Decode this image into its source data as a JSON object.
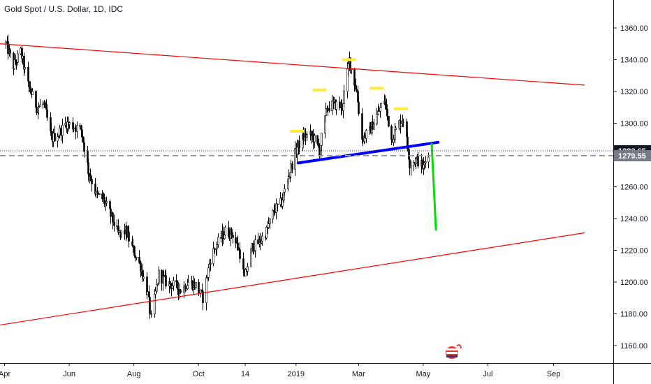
{
  "header": {
    "title": "Gold Spot / U.S. Dollar, 1D, IDC"
  },
  "chart_data": {
    "type": "candlestick",
    "symbol": "Gold Spot / U.S. Dollar",
    "interval": "1D",
    "source": "IDC",
    "y_ticks": [
      1160,
      1180,
      1200,
      1220,
      1240,
      1260,
      1280,
      1300,
      1320,
      1340,
      1360
    ],
    "y_tick_labels": [
      "1160.00",
      "1180.00",
      "1200.00",
      "1220.00",
      "1240.00",
      "1260.00",
      "1280.00",
      "1300.00",
      "1320.00",
      "1340.00",
      "1360.00"
    ],
    "ylim": [
      1151,
      1370
    ],
    "x_ticks": [
      "Apr",
      "Jun",
      "Aug",
      "Oct",
      "14",
      "2019",
      "Mar",
      "May",
      "Jul",
      "Sep"
    ],
    "price_tags": [
      {
        "label": "1282.65",
        "value": 1282.65,
        "color": "#131722"
      },
      {
        "label": "1279.55",
        "value": 1279.55,
        "color": "#787b86"
      }
    ],
    "price_path": [
      [
        "2018-04-02",
        1350
      ],
      [
        "2018-04-09",
        1336
      ],
      [
        "2018-04-16",
        1345
      ],
      [
        "2018-04-23",
        1324
      ],
      [
        "2018-05-01",
        1310
      ],
      [
        "2018-05-08",
        1312
      ],
      [
        "2018-05-15",
        1290
      ],
      [
        "2018-05-22",
        1294
      ],
      [
        "2018-05-29",
        1300
      ],
      [
        "2018-06-05",
        1298
      ],
      [
        "2018-06-12",
        1296
      ],
      [
        "2018-06-19",
        1270
      ],
      [
        "2018-06-26",
        1255
      ],
      [
        "2018-07-03",
        1252
      ],
      [
        "2018-07-10",
        1242
      ],
      [
        "2018-07-17",
        1230
      ],
      [
        "2018-07-24",
        1232
      ],
      [
        "2018-07-31",
        1220
      ],
      [
        "2018-08-07",
        1210
      ],
      [
        "2018-08-14",
        1192
      ],
      [
        "2018-08-17",
        1177
      ],
      [
        "2018-08-24",
        1205
      ],
      [
        "2018-08-31",
        1200
      ],
      [
        "2018-09-07",
        1198
      ],
      [
        "2018-09-14",
        1195
      ],
      [
        "2018-09-21",
        1200
      ],
      [
        "2018-09-28",
        1198
      ],
      [
        "2018-10-05",
        1190
      ],
      [
        "2018-10-12",
        1215
      ],
      [
        "2018-10-19",
        1225
      ],
      [
        "2018-10-26",
        1232
      ],
      [
        "2018-11-02",
        1230
      ],
      [
        "2018-11-09",
        1218
      ],
      [
        "2018-11-13",
        1202
      ],
      [
        "2018-11-20",
        1222
      ],
      [
        "2018-11-27",
        1225
      ],
      [
        "2018-12-04",
        1232
      ],
      [
        "2018-12-11",
        1245
      ],
      [
        "2018-12-18",
        1250
      ],
      [
        "2018-12-25",
        1268
      ],
      [
        "2019-01-02",
        1285
      ],
      [
        "2019-01-09",
        1292
      ],
      [
        "2019-01-16",
        1292
      ],
      [
        "2019-01-23",
        1283
      ],
      [
        "2019-01-30",
        1310
      ],
      [
        "2019-02-06",
        1312
      ],
      [
        "2019-02-13",
        1310
      ],
      [
        "2019-02-20",
        1340
      ],
      [
        "2019-02-27",
        1320
      ],
      [
        "2019-03-04",
        1290
      ],
      [
        "2019-03-11",
        1295
      ],
      [
        "2019-03-18",
        1305
      ],
      [
        "2019-03-25",
        1315
      ],
      [
        "2019-04-01",
        1290
      ],
      [
        "2019-04-08",
        1300
      ],
      [
        "2019-04-12",
        1303
      ],
      [
        "2019-04-18",
        1275
      ],
      [
        "2019-04-25",
        1277
      ],
      [
        "2019-05-01",
        1272
      ],
      [
        "2019-05-06",
        1282
      ]
    ],
    "drawings": [
      {
        "name": "upper-trendline",
        "color": "#ff0000",
        "from": [
          "2018-03-28",
          1350
        ],
        "to": [
          "2019-09-30",
          1324
        ]
      },
      {
        "name": "lower-trendline",
        "color": "#ff0000",
        "from": [
          "2018-03-28",
          1173
        ],
        "to": [
          "2019-09-30",
          1231
        ]
      },
      {
        "name": "neckline",
        "color": "#0000ff",
        "from": [
          "2019-01-03",
          1275
        ],
        "to": [
          "2019-05-15",
          1288
        ]
      },
      {
        "name": "projection-arrow",
        "color": "#00e000",
        "from": [
          "2019-05-09",
          1287
        ],
        "to": [
          "2019-05-13",
          1233
        ]
      }
    ],
    "markers": [
      {
        "date": "2019-01-02",
        "value": 1295,
        "color": "#ffeb3b"
      },
      {
        "date": "2019-01-23",
        "value": 1321,
        "color": "#ffeb3b"
      },
      {
        "date": "2019-02-20",
        "value": 1340,
        "color": "#ffeb3b"
      },
      {
        "date": "2019-03-18",
        "value": 1322,
        "color": "#ffeb3b"
      },
      {
        "date": "2019-04-10",
        "value": 1309,
        "color": "#ffeb3b"
      }
    ]
  }
}
